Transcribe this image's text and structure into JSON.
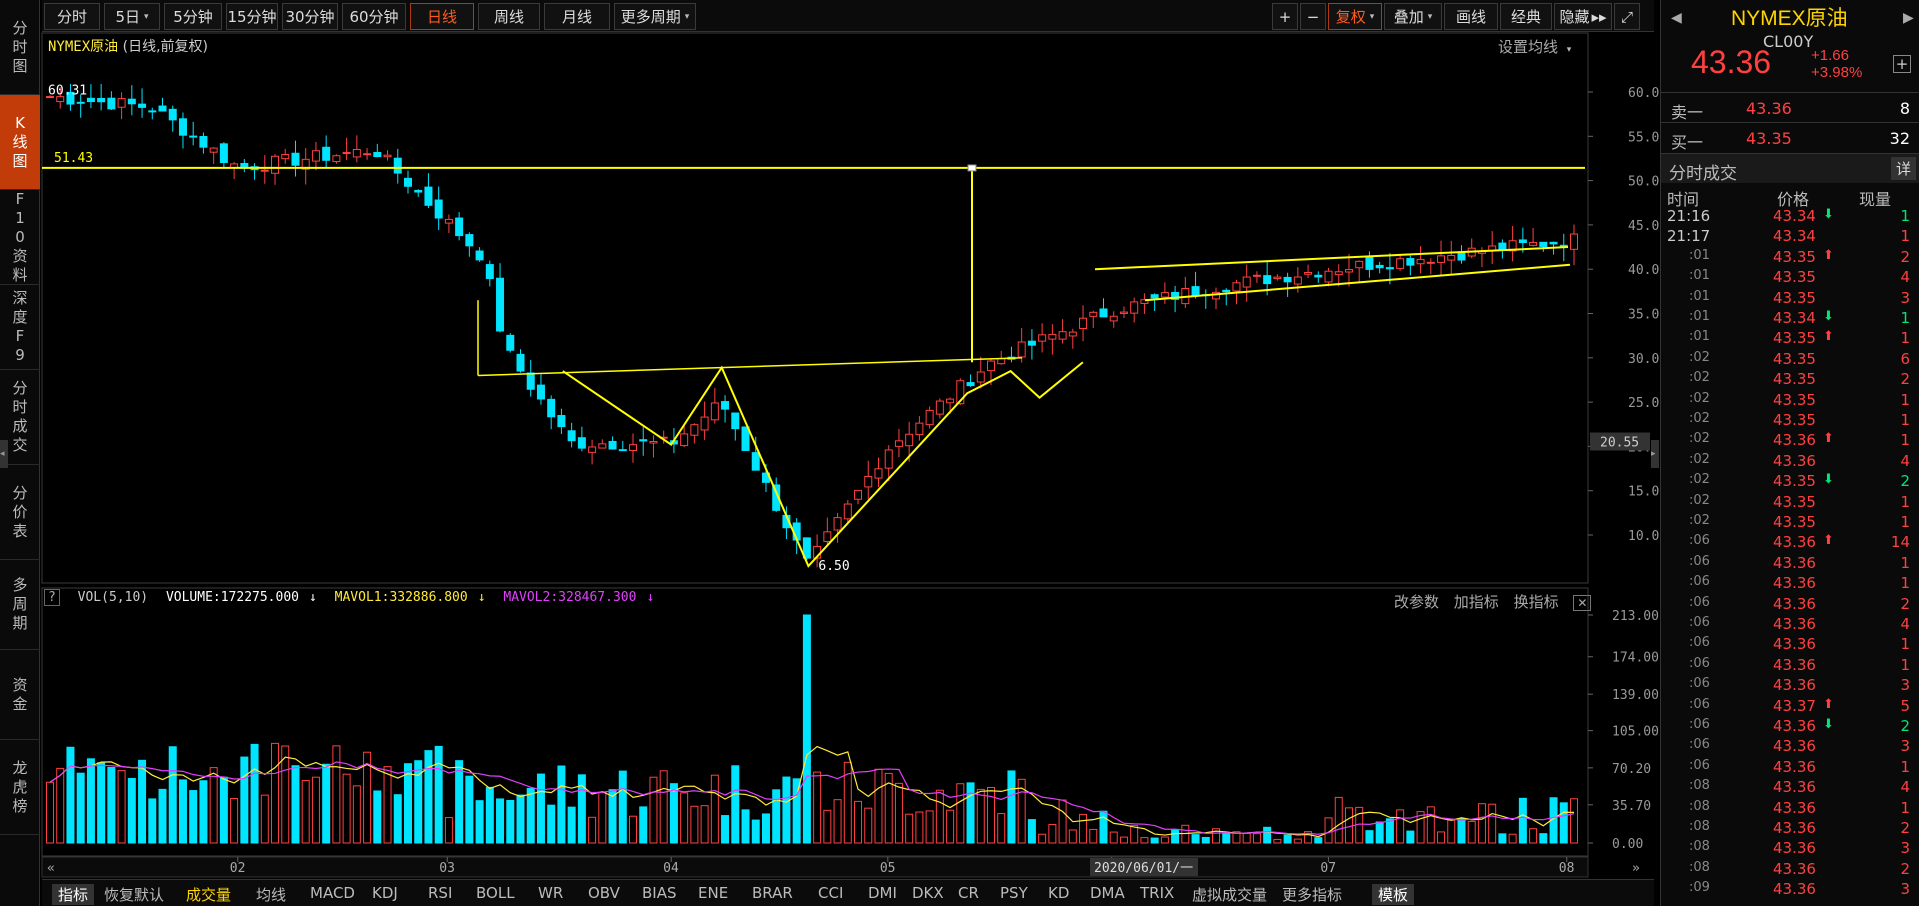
{
  "left_nav": [
    "分时图",
    "K线图",
    "F10资料",
    "深度F9",
    "分时成交",
    "分价表",
    "多周期",
    "资金",
    "龙虎榜"
  ],
  "toolbar": {
    "periods": [
      "分时",
      "5日",
      "5分钟",
      "15分钟",
      "30分钟",
      "60分钟",
      "日线",
      "周线",
      "月线",
      "更多周期"
    ],
    "active_period": "日线",
    "right_buttons": [
      "+",
      "−",
      "复权",
      "叠加",
      "画线",
      "经典",
      "隐藏"
    ]
  },
  "chart_header": {
    "symbol": "NYMEX原油",
    "desc": "(日线,前复权)",
    "set_ma": "设置均线"
  },
  "price_axis": [
    "60.00",
    "55.00",
    "50.00",
    "45.00",
    "40.00",
    "35.00",
    "30.00",
    "25.00",
    "20.00",
    "15.00",
    "10.00"
  ],
  "current_price_tag": "20.55",
  "annotations": {
    "high_label": "60.31",
    "low_label": "6.50",
    "hline_label": "51.43"
  },
  "volume_header": {
    "name": "VOL(5,10)",
    "volume": "VOLUME:172275.000",
    "ma1": "MAVOL1:332886.800",
    "ma2": "MAVOL2:328467.300",
    "tools": [
      "改参数",
      "加指标",
      "换指标"
    ]
  },
  "volume_axis": [
    "213.00",
    "174.00",
    "139.00",
    "105.00",
    "70.20",
    "35.70",
    "0.00"
  ],
  "time_axis": [
    "02",
    "03",
    "04",
    "05",
    "06",
    "07",
    "08"
  ],
  "cursor_date": "2020/06/01/一",
  "bottom_tabs": [
    "指标",
    "恢复默认",
    "成交量",
    "均线",
    "MACD",
    "KDJ",
    "RSI",
    "BOLL",
    "WR",
    "OBV",
    "BIAS",
    "ENE",
    "BRAR",
    "CCI",
    "DMI",
    "DKX",
    "CR",
    "PSY",
    "KD",
    "DMA",
    "TRIX",
    "虚拟成交量",
    "更多指标",
    "模板"
  ],
  "quote": {
    "name": "NYMEX原油",
    "code": "CL00Y",
    "price": "43.36",
    "change": "+1.66",
    "change_pct": "+3.98%",
    "sell_label": "卖一",
    "sell_price": "43.36",
    "sell_qty": "8",
    "buy_label": "买一",
    "buy_price": "43.35",
    "buy_qty": "32",
    "trades_title": "分时成交",
    "detail_button": "详",
    "columns": [
      "时间",
      "价格",
      "现量"
    ]
  },
  "trades": [
    {
      "t": "21:16",
      "p": "43.34",
      "dir": "down",
      "v": "1"
    },
    {
      "t": "21:17",
      "p": "43.34",
      "dir": "",
      "v": "1"
    },
    {
      "t": ":01",
      "p": "43.35",
      "dir": "up",
      "v": "2"
    },
    {
      "t": ":01",
      "p": "43.35",
      "dir": "",
      "v": "4"
    },
    {
      "t": ":01",
      "p": "43.35",
      "dir": "",
      "v": "3"
    },
    {
      "t": ":01",
      "p": "43.34",
      "dir": "down",
      "v": "1"
    },
    {
      "t": ":01",
      "p": "43.35",
      "dir": "up",
      "v": "1"
    },
    {
      "t": ":02",
      "p": "43.35",
      "dir": "",
      "v": "6"
    },
    {
      "t": ":02",
      "p": "43.35",
      "dir": "",
      "v": "2"
    },
    {
      "t": ":02",
      "p": "43.35",
      "dir": "",
      "v": "1"
    },
    {
      "t": ":02",
      "p": "43.35",
      "dir": "",
      "v": "1"
    },
    {
      "t": ":02",
      "p": "43.36",
      "dir": "up",
      "v": "1"
    },
    {
      "t": ":02",
      "p": "43.36",
      "dir": "",
      "v": "4"
    },
    {
      "t": ":02",
      "p": "43.35",
      "dir": "down",
      "v": "2"
    },
    {
      "t": ":02",
      "p": "43.35",
      "dir": "",
      "v": "1"
    },
    {
      "t": ":02",
      "p": "43.35",
      "dir": "",
      "v": "1"
    },
    {
      "t": ":06",
      "p": "43.36",
      "dir": "up",
      "v": "14"
    },
    {
      "t": ":06",
      "p": "43.36",
      "dir": "",
      "v": "1"
    },
    {
      "t": ":06",
      "p": "43.36",
      "dir": "",
      "v": "1"
    },
    {
      "t": ":06",
      "p": "43.36",
      "dir": "",
      "v": "2"
    },
    {
      "t": ":06",
      "p": "43.36",
      "dir": "",
      "v": "4"
    },
    {
      "t": ":06",
      "p": "43.36",
      "dir": "",
      "v": "1"
    },
    {
      "t": ":06",
      "p": "43.36",
      "dir": "",
      "v": "1"
    },
    {
      "t": ":06",
      "p": "43.36",
      "dir": "",
      "v": "3"
    },
    {
      "t": ":06",
      "p": "43.37",
      "dir": "up",
      "v": "5"
    },
    {
      "t": ":06",
      "p": "43.36",
      "dir": "down",
      "v": "2"
    },
    {
      "t": ":06",
      "p": "43.36",
      "dir": "",
      "v": "3"
    },
    {
      "t": ":06",
      "p": "43.36",
      "dir": "",
      "v": "1"
    },
    {
      "t": ":08",
      "p": "43.36",
      "dir": "",
      "v": "4"
    },
    {
      "t": ":08",
      "p": "43.36",
      "dir": "",
      "v": "1"
    },
    {
      "t": ":08",
      "p": "43.36",
      "dir": "",
      "v": "2"
    },
    {
      "t": ":08",
      "p": "43.36",
      "dir": "",
      "v": "3"
    },
    {
      "t": ":08",
      "p": "43.36",
      "dir": "",
      "v": "2"
    },
    {
      "t": ":09",
      "p": "43.36",
      "dir": "",
      "v": "3"
    }
  ],
  "colors": {
    "up": "#ff4040",
    "down": "#00e5ff",
    "ma1": "#ffeb3b",
    "ma2": "#e040fb",
    "draw": "#ffff00"
  },
  "chart_data": {
    "type": "candlestick",
    "period": "daily",
    "ylim": [
      6.5,
      60.31
    ],
    "x_ticks": [
      "02",
      "03",
      "04",
      "05",
      "06",
      "07",
      "08"
    ],
    "series_points": [
      {
        "date": "2020-01",
        "close": 59.5
      },
      {
        "date": "2020-01-20",
        "close": 58.3
      },
      {
        "date": "2020-02-01",
        "close": 51.5
      },
      {
        "date": "2020-02-20",
        "close": 53.5
      },
      {
        "date": "2020-03-06",
        "close": 41.3
      },
      {
        "date": "2020-03-09",
        "close": 31.1
      },
      {
        "date": "2020-03-18",
        "close": 20.4
      },
      {
        "date": "2020-04-01",
        "close": 20.3
      },
      {
        "date": "2020-04-08",
        "close": 25.0
      },
      {
        "date": "2020-04-20",
        "close": 6.5
      },
      {
        "date": "2020-05-01",
        "close": 19.8
      },
      {
        "date": "2020-05-15",
        "close": 29.4
      },
      {
        "date": "2020-06-01",
        "close": 35.4
      },
      {
        "date": "2020-06-15",
        "close": 38.0
      },
      {
        "date": "2020-07-01",
        "close": 40.0
      },
      {
        "date": "2020-08-04",
        "close": 43.36
      }
    ],
    "volume_ylim": [
      0,
      213
    ]
  }
}
